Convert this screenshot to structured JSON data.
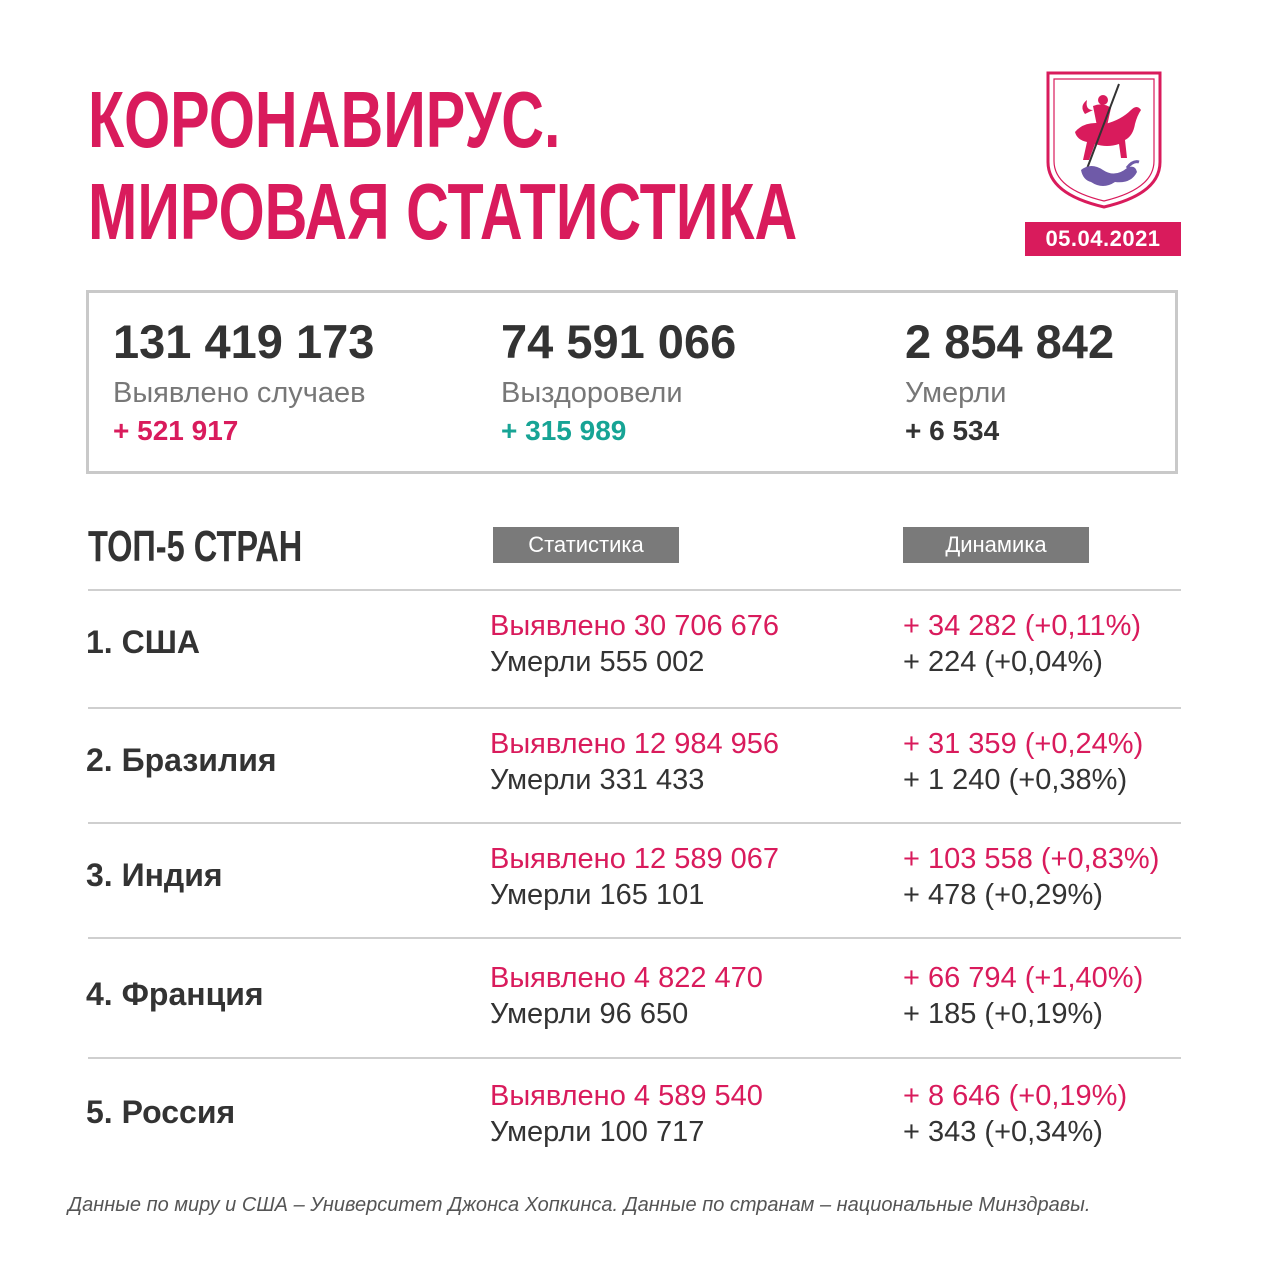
{
  "header": {
    "title_line1": "КОРОНАВИРУС.",
    "title_line2": "МИРОВАЯ СТАТИСТИКА",
    "date": "05.04.2021"
  },
  "summary": {
    "cases": {
      "value": "131 419 173",
      "label": "Выявлено случаев",
      "delta": "+ 521 917"
    },
    "recovered": {
      "value": "74 591 066",
      "label": "Выздоровели",
      "delta": "+ 315 989"
    },
    "deaths": {
      "value": "2 854 842",
      "label": "Умерли",
      "delta": "+ 6 534"
    }
  },
  "top5": {
    "title": "ТОП-5 СТРАН",
    "col_stats": "Статистика",
    "col_dynamics": "Динамика",
    "rows": [
      {
        "country": "1. США",
        "cases": "Выявлено 30 706 676",
        "deaths": "Умерли 555 002",
        "cases_delta": "+ 34 282 (+0,11%)",
        "deaths_delta": "+ 224 (+0,04%)"
      },
      {
        "country": "2. Бразилия",
        "cases": "Выявлено 12 984 956",
        "deaths": "Умерли 331 433",
        "cases_delta": "+ 31 359 (+0,24%)",
        "deaths_delta": "+ 1 240 (+0,38%)"
      },
      {
        "country": "3. Индия",
        "cases": "Выявлено 12 589 067",
        "deaths": "Умерли 165 101",
        "cases_delta": "+ 103 558 (+0,83%)",
        "deaths_delta": "+ 478 (+0,29%)"
      },
      {
        "country": "4. Франция",
        "cases": "Выявлено 4 822 470",
        "deaths": "Умерли 96 650",
        "cases_delta": "+ 66 794 (+1,40%)",
        "deaths_delta": "+ 185 (+0,19%)"
      },
      {
        "country": "5. Россия",
        "cases": "Выявлено 4 589 540",
        "deaths": "Умерли 100 717",
        "cases_delta": "+ 8 646 (+0,19%)",
        "deaths_delta": "+ 343 (+0,34%)"
      }
    ]
  },
  "footer": "Данные по миру и США – Университет Джонса Хопкинса. Данные по странам – национальные Минздравы.",
  "icons": {
    "coat_of_arms": "moscow-coat-of-arms-icon"
  },
  "colors": {
    "accent": "#d91b5c",
    "recovered": "#17a495",
    "tag": "#7a7a7a"
  }
}
